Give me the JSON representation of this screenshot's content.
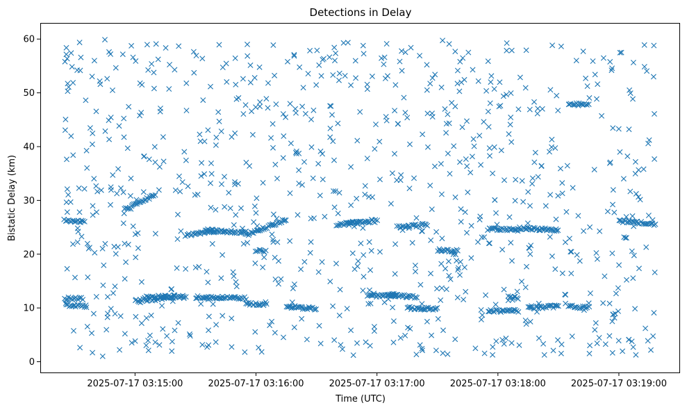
{
  "chart_data": {
    "type": "scatter",
    "title": "Detections in Delay",
    "xlabel": "Time (UTC)",
    "ylabel": "Bistatic Delay (km)",
    "marker": "x",
    "color": "#1f77b4",
    "xaxis_type": "time",
    "x_range": [
      "2025-07-17 03:14:25",
      "2025-07-17 03:19:18"
    ],
    "xlim": [
      "2025-07-17 03:14:13",
      "2025-07-17 03:19:30"
    ],
    "ylim": [
      -2,
      63
    ],
    "x_ticks": [
      "2025-07-17 03:15:00",
      "2025-07-17 03:16:00",
      "2025-07-17 03:17:00",
      "2025-07-17 03:18:00",
      "2025-07-17 03:19:00"
    ],
    "y_ticks": [
      0,
      10,
      20,
      30,
      40,
      50,
      60
    ],
    "grid": false,
    "legend": "none",
    "point_count": 1500,
    "tracks": [
      {
        "x_start": "2025-07-17 03:14:25",
        "x_end": "2025-07-17 03:14:35",
        "y_start": 26.3,
        "y_end": 26.0
      },
      {
        "x_start": "2025-07-17 03:14:26",
        "x_end": "2025-07-17 03:14:36",
        "y_start": 10.5,
        "y_end": 10.3
      },
      {
        "x_start": "2025-07-17 03:14:25",
        "x_end": "2025-07-17 03:14:34",
        "y_start": 11.8,
        "y_end": 11.7
      },
      {
        "x_start": "2025-07-17 03:14:55",
        "x_end": "2025-07-17 03:15:10",
        "y_start": 28.3,
        "y_end": 31.0
      },
      {
        "x_start": "2025-07-17 03:15:00",
        "x_end": "2025-07-17 03:15:20",
        "y_start": 11.3,
        "y_end": 12.0
      },
      {
        "x_start": "2025-07-17 03:15:05",
        "x_end": "2025-07-17 03:15:25",
        "y_start": 12.0,
        "y_end": 12.2
      },
      {
        "x_start": "2025-07-17 03:15:25",
        "x_end": "2025-07-17 03:15:40",
        "y_start": 23.6,
        "y_end": 24.2
      },
      {
        "x_start": "2025-07-17 03:15:30",
        "x_end": "2025-07-17 03:15:55",
        "y_start": 12.0,
        "y_end": 11.8
      },
      {
        "x_start": "2025-07-17 03:15:35",
        "x_end": "2025-07-17 03:15:55",
        "y_start": 24.5,
        "y_end": 24.0
      },
      {
        "x_start": "2025-07-17 03:15:55",
        "x_end": "2025-07-17 03:16:15",
        "y_start": 23.5,
        "y_end": 26.5
      },
      {
        "x_start": "2025-07-17 03:16:00",
        "x_end": "2025-07-17 03:16:05",
        "y_start": 20.7,
        "y_end": 20.6
      },
      {
        "x_start": "2025-07-17 03:15:55",
        "x_end": "2025-07-17 03:16:05",
        "y_start": 10.8,
        "y_end": 10.7
      },
      {
        "x_start": "2025-07-17 03:16:15",
        "x_end": "2025-07-17 03:16:30",
        "y_start": 10.3,
        "y_end": 9.8
      },
      {
        "x_start": "2025-07-17 03:16:40",
        "x_end": "2025-07-17 03:16:50",
        "y_start": 25.5,
        "y_end": 25.8
      },
      {
        "x_start": "2025-07-17 03:16:45",
        "x_end": "2025-07-17 03:17:00",
        "y_start": 25.8,
        "y_end": 26.2
      },
      {
        "x_start": "2025-07-17 03:16:55",
        "x_end": "2025-07-17 03:17:10",
        "y_start": 12.2,
        "y_end": 12.5
      },
      {
        "x_start": "2025-07-17 03:17:05",
        "x_end": "2025-07-17 03:17:20",
        "y_start": 12.3,
        "y_end": 12.1
      },
      {
        "x_start": "2025-07-17 03:17:10",
        "x_end": "2025-07-17 03:17:25",
        "y_start": 25.0,
        "y_end": 25.5
      },
      {
        "x_start": "2025-07-17 03:17:15",
        "x_end": "2025-07-17 03:17:30",
        "y_start": 10.0,
        "y_end": 9.8
      },
      {
        "x_start": "2025-07-17 03:17:30",
        "x_end": "2025-07-17 03:17:40",
        "y_start": 20.8,
        "y_end": 20.6
      },
      {
        "x_start": "2025-07-17 03:17:55",
        "x_end": "2025-07-17 03:18:10",
        "y_start": 24.7,
        "y_end": 24.5
      },
      {
        "x_start": "2025-07-17 03:17:55",
        "x_end": "2025-07-17 03:18:10",
        "y_start": 9.4,
        "y_end": 9.5
      },
      {
        "x_start": "2025-07-17 03:18:05",
        "x_end": "2025-07-17 03:18:10",
        "y_start": 12.0,
        "y_end": 11.8
      },
      {
        "x_start": "2025-07-17 03:18:10",
        "x_end": "2025-07-17 03:18:30",
        "y_start": 24.8,
        "y_end": 24.5
      },
      {
        "x_start": "2025-07-17 03:18:15",
        "x_end": "2025-07-17 03:18:30",
        "y_start": 10.0,
        "y_end": 10.3
      },
      {
        "x_start": "2025-07-17 03:18:35",
        "x_end": "2025-07-17 03:18:45",
        "y_start": 47.9,
        "y_end": 47.8
      },
      {
        "x_start": "2025-07-17 03:18:35",
        "x_end": "2025-07-17 03:18:45",
        "y_start": 10.3,
        "y_end": 10.0
      },
      {
        "x_start": "2025-07-17 03:19:00",
        "x_end": "2025-07-17 03:19:18",
        "y_start": 26.2,
        "y_end": 25.6
      }
    ]
  }
}
